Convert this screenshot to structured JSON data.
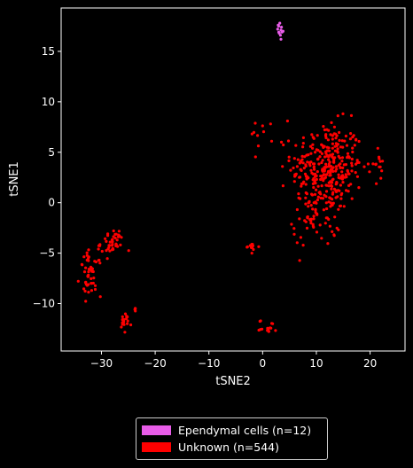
{
  "chart_data": {
    "type": "scatter",
    "xlabel": "tSNE2",
    "ylabel": "tSNE1",
    "xlim": [
      -37.5,
      26.5
    ],
    "ylim": [
      -14.7,
      19.3
    ],
    "xticks": [
      -30,
      -20,
      -10,
      0,
      10,
      20
    ],
    "yticks": [
      -10,
      -5,
      0,
      5,
      10,
      15
    ],
    "background": "#000000",
    "legend_position": "below",
    "series": [
      {
        "name": "Ependymal cells (n=12)",
        "color": "#e85ce8",
        "points": [
          [
            3.0,
            17.5
          ],
          [
            3.4,
            17.1
          ],
          [
            3.1,
            16.8
          ],
          [
            3.5,
            17.4
          ],
          [
            2.8,
            17.2
          ],
          [
            3.3,
            16.6
          ],
          [
            3.8,
            17.0
          ],
          [
            3.2,
            17.8
          ],
          [
            3.0,
            16.9
          ],
          [
            3.6,
            16.9
          ],
          [
            3.4,
            16.2
          ],
          [
            2.9,
            17.6
          ]
        ]
      },
      {
        "name": "Unknown (n=544)",
        "color": "#ff0000",
        "clusters": [
          {
            "cx": 12.0,
            "cy": 3.5,
            "sx": 6.0,
            "sy": 4.0,
            "n": 320
          },
          {
            "cx": 10.0,
            "cy": -1.5,
            "sx": 4.0,
            "sy": 2.5,
            "n": 60
          },
          {
            "cx": 21.5,
            "cy": 4.0,
            "sx": 1.0,
            "sy": 1.0,
            "n": 12
          },
          {
            "cx": -28.0,
            "cy": -4.0,
            "sx": 2.0,
            "sy": 1.2,
            "n": 40
          },
          {
            "cx": -32.0,
            "cy": -7.0,
            "sx": 1.8,
            "sy": 2.0,
            "n": 50
          },
          {
            "cx": -25.5,
            "cy": -12.0,
            "sx": 1.0,
            "sy": 0.9,
            "n": 18
          },
          {
            "cx": -23.8,
            "cy": -10.5,
            "sx": 0.2,
            "sy": 0.5,
            "n": 4
          },
          {
            "cx": -2.0,
            "cy": -4.4,
            "sx": 1.2,
            "sy": 0.4,
            "n": 14
          },
          {
            "cx": 1.0,
            "cy": -12.3,
            "sx": 1.5,
            "sy": 0.6,
            "n": 16
          },
          {
            "cx": 0.5,
            "cy": 7.0,
            "sx": 2.5,
            "sy": 1.5,
            "n": 10
          }
        ]
      }
    ]
  },
  "legend": {
    "items": [
      {
        "label": "Ependymal cells (n=12)",
        "color": "#e85ce8"
      },
      {
        "label": "Unknown (n=544)",
        "color": "#ff0000"
      }
    ]
  }
}
